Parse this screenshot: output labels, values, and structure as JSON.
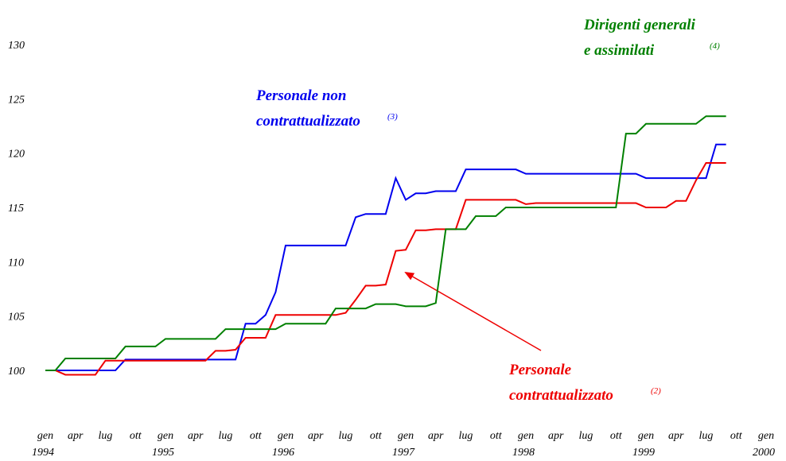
{
  "chart_data": {
    "type": "line",
    "x": [
      "1994-01",
      "1994-02",
      "1994-03",
      "1994-04",
      "1994-05",
      "1994-06",
      "1994-07",
      "1994-08",
      "1994-09",
      "1994-10",
      "1994-11",
      "1994-12",
      "1995-01",
      "1995-02",
      "1995-03",
      "1995-04",
      "1995-05",
      "1995-06",
      "1995-07",
      "1995-08",
      "1995-09",
      "1995-10",
      "1995-11",
      "1995-12",
      "1996-01",
      "1996-02",
      "1996-03",
      "1996-04",
      "1996-05",
      "1996-06",
      "1996-07",
      "1996-08",
      "1996-09",
      "1996-10",
      "1996-11",
      "1996-12",
      "1997-01",
      "1997-02",
      "1997-03",
      "1997-04",
      "1997-05",
      "1997-06",
      "1997-07",
      "1997-08",
      "1997-09",
      "1997-10",
      "1997-11",
      "1997-12",
      "1998-01",
      "1998-02",
      "1998-03",
      "1998-04",
      "1998-05",
      "1998-06",
      "1998-07",
      "1998-08",
      "1998-09",
      "1998-10",
      "1998-11",
      "1998-12",
      "1999-01",
      "1999-02",
      "1999-03",
      "1999-04",
      "1999-05",
      "1999-06",
      "1999-07",
      "1999-08",
      "1999-09"
    ],
    "series": [
      {
        "label_lines": [
          "Personale non",
          "contrattualizzato"
        ],
        "note": "(3)",
        "color": "#0000ee",
        "values": [
          100,
          100,
          100,
          100,
          100,
          100,
          100,
          100,
          101,
          101,
          101,
          101,
          101,
          101,
          101,
          101,
          101,
          101,
          101,
          101,
          104.3,
          104.3,
          105.1,
          107.2,
          111.5,
          111.5,
          111.5,
          111.5,
          111.5,
          111.5,
          111.5,
          114.1,
          114.4,
          114.4,
          114.4,
          117.7,
          115.7,
          116.3,
          116.3,
          116.5,
          116.5,
          116.5,
          118.5,
          118.5,
          118.5,
          118.5,
          118.5,
          118.5,
          118.1,
          118.1,
          118.1,
          118.1,
          118.1,
          118.1,
          118.1,
          118.1,
          118.1,
          118.1,
          118.1,
          118.1,
          117.7,
          117.7,
          117.7,
          117.7,
          117.7,
          117.7,
          117.7,
          120.8,
          120.8
        ]
      },
      {
        "label_lines": [
          "Personale",
          "contrattualizzato"
        ],
        "note": "(2)",
        "color": "#ee0000",
        "values": [
          100,
          100,
          99.6,
          99.6,
          99.6,
          99.6,
          100.9,
          100.9,
          100.9,
          100.9,
          100.9,
          100.9,
          100.9,
          100.9,
          100.9,
          100.9,
          100.9,
          101.8,
          101.8,
          101.9,
          103,
          103,
          103,
          105.1,
          105.1,
          105.1,
          105.1,
          105.1,
          105.1,
          105.1,
          105.3,
          106.5,
          107.8,
          107.8,
          107.9,
          111,
          111.1,
          112.9,
          112.9,
          113,
          113,
          113,
          115.7,
          115.7,
          115.7,
          115.7,
          115.7,
          115.7,
          115.3,
          115.4,
          115.4,
          115.4,
          115.4,
          115.4,
          115.4,
          115.4,
          115.4,
          115.4,
          115.4,
          115.4,
          115,
          115,
          115,
          115.6,
          115.6,
          117.5,
          119.1,
          119.1,
          119.1
        ]
      },
      {
        "label_lines": [
          "Dirigenti generali",
          "e assimilati"
        ],
        "note": "(4)",
        "color": "#008000",
        "values": [
          100,
          100,
          101.1,
          101.1,
          101.1,
          101.1,
          101.1,
          101.1,
          102.2,
          102.2,
          102.2,
          102.2,
          102.9,
          102.9,
          102.9,
          102.9,
          102.9,
          102.9,
          103.8,
          103.8,
          103.8,
          103.8,
          103.8,
          103.8,
          104.3,
          104.3,
          104.3,
          104.3,
          104.3,
          105.7,
          105.7,
          105.7,
          105.7,
          106.1,
          106.1,
          106.1,
          105.9,
          105.9,
          105.9,
          106.2,
          113,
          113,
          113,
          114.2,
          114.2,
          114.2,
          115,
          115,
          115,
          115,
          115,
          115,
          115,
          115,
          115,
          115,
          115,
          115,
          121.8,
          121.8,
          122.7,
          122.7,
          122.7,
          122.7,
          122.7,
          122.7,
          123.4,
          123.4,
          123.4
        ]
      }
    ],
    "xlim": [
      "1994-01",
      "2000-01"
    ],
    "xticks": [
      {
        "value": "1994-01",
        "label": "gen"
      },
      {
        "value": "1994-04",
        "label": "apr"
      },
      {
        "value": "1994-07",
        "label": "lug"
      },
      {
        "value": "1994-10",
        "label": "ott"
      },
      {
        "value": "1995-01",
        "label": "gen"
      },
      {
        "value": "1995-04",
        "label": "apr"
      },
      {
        "value": "1995-07",
        "label": "lug"
      },
      {
        "value": "1995-10",
        "label": "ott"
      },
      {
        "value": "1996-01",
        "label": "gen"
      },
      {
        "value": "1996-04",
        "label": "apr"
      },
      {
        "value": "1996-07",
        "label": "lug"
      },
      {
        "value": "1996-10",
        "label": "ott"
      },
      {
        "value": "1997-01",
        "label": "gen"
      },
      {
        "value": "1997-04",
        "label": "apr"
      },
      {
        "value": "1997-07",
        "label": "lug"
      },
      {
        "value": "1997-10",
        "label": "ott"
      },
      {
        "value": "1998-01",
        "label": "gen"
      },
      {
        "value": "1998-04",
        "label": "apr"
      },
      {
        "value": "1998-07",
        "label": "lug"
      },
      {
        "value": "1998-10",
        "label": "ott"
      },
      {
        "value": "1999-01",
        "label": "gen"
      },
      {
        "value": "1999-04",
        "label": "apr"
      },
      {
        "value": "1999-07",
        "label": "lug"
      },
      {
        "value": "1999-10",
        "label": "ott"
      },
      {
        "value": "2000-01",
        "label": "gen"
      }
    ],
    "x_year_labels": [
      {
        "value": "1994-01",
        "label": "1994"
      },
      {
        "value": "1995-01",
        "label": "1995"
      },
      {
        "value": "1996-01",
        "label": "1996"
      },
      {
        "value": "1997-01",
        "label": "1997"
      },
      {
        "value": "1998-01",
        "label": "1998"
      },
      {
        "value": "1999-01",
        "label": "1999"
      },
      {
        "value": "2000-01",
        "label": "2000"
      }
    ],
    "ylim": [
      100,
      130
    ],
    "yticks": [
      100,
      105,
      110,
      115,
      120,
      125,
      130
    ],
    "grid": false
  }
}
